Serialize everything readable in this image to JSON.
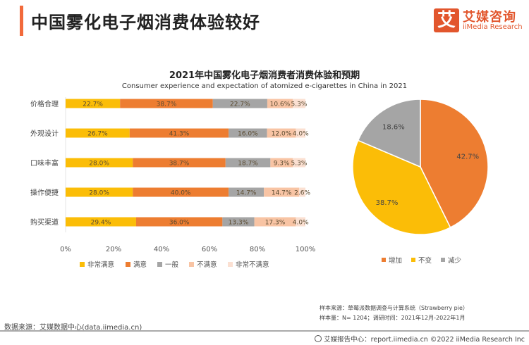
{
  "header": {
    "title": "中国雾化电子烟消费体验较好",
    "accent_color": "#f26a3b",
    "logo": {
      "glyph": "艾",
      "cn": "艾媒咨询",
      "en": "iiMedia Research",
      "color": "#e2562d"
    }
  },
  "chart_data": [
    {
      "type": "bar",
      "orientation": "horizontal",
      "stacked": true,
      "title": "2021年中国雾化电子烟消费者消费体验和预期",
      "subtitle": "Consumer experience and expectation of atomized e-cigarettes in China in 2021",
      "categories": [
        "价格合理",
        "外观设计",
        "口味丰富",
        "操作便捷",
        "购买渠道"
      ],
      "series": [
        {
          "name": "非常满意",
          "color": "#fbbd07",
          "values": [
            22.7,
            26.7,
            28.0,
            28.0,
            29.4
          ]
        },
        {
          "name": "满意",
          "color": "#ed7d31",
          "values": [
            38.7,
            41.3,
            38.7,
            40.0,
            36.0
          ]
        },
        {
          "name": "一般",
          "color": "#a5a5a5",
          "values": [
            22.7,
            16.0,
            18.7,
            14.7,
            13.3
          ]
        },
        {
          "name": "不满意",
          "color": "#f8c4a4",
          "values": [
            10.6,
            12.0,
            9.3,
            14.7,
            17.3
          ]
        },
        {
          "name": "非常不满意",
          "color": "#fbe0d2",
          "values": [
            5.3,
            4.0,
            5.3,
            2.6,
            4.0
          ]
        }
      ],
      "xlim": [
        0,
        100
      ],
      "xticks": [
        "0%",
        "20%",
        "40%",
        "60%",
        "80%",
        "100%"
      ],
      "legend": "bottom",
      "grid": false
    },
    {
      "type": "pie",
      "slices": [
        {
          "name": "增加",
          "value": 42.7,
          "label": "42.7%",
          "color": "#ed7d31"
        },
        {
          "name": "不变",
          "value": 38.7,
          "label": "38.7%",
          "color": "#fbbd07"
        },
        {
          "name": "减少",
          "value": 18.6,
          "label": "18.6%",
          "color": "#a5a5a5"
        }
      ],
      "legend": "bottom"
    }
  ],
  "notes": {
    "sample_source": "样本来源：草莓派数据调查与计算系统（Strawberry pie）",
    "sample_size": "样本量：N= 1204；调研时间：2021年12月-2022年1月",
    "data_source": "数据来源：艾媒数据中心(data.iimedia.cn)",
    "footer": "艾媒报告中心：report.iimedia.cn  ©2022  iiMedia Research Inc"
  }
}
